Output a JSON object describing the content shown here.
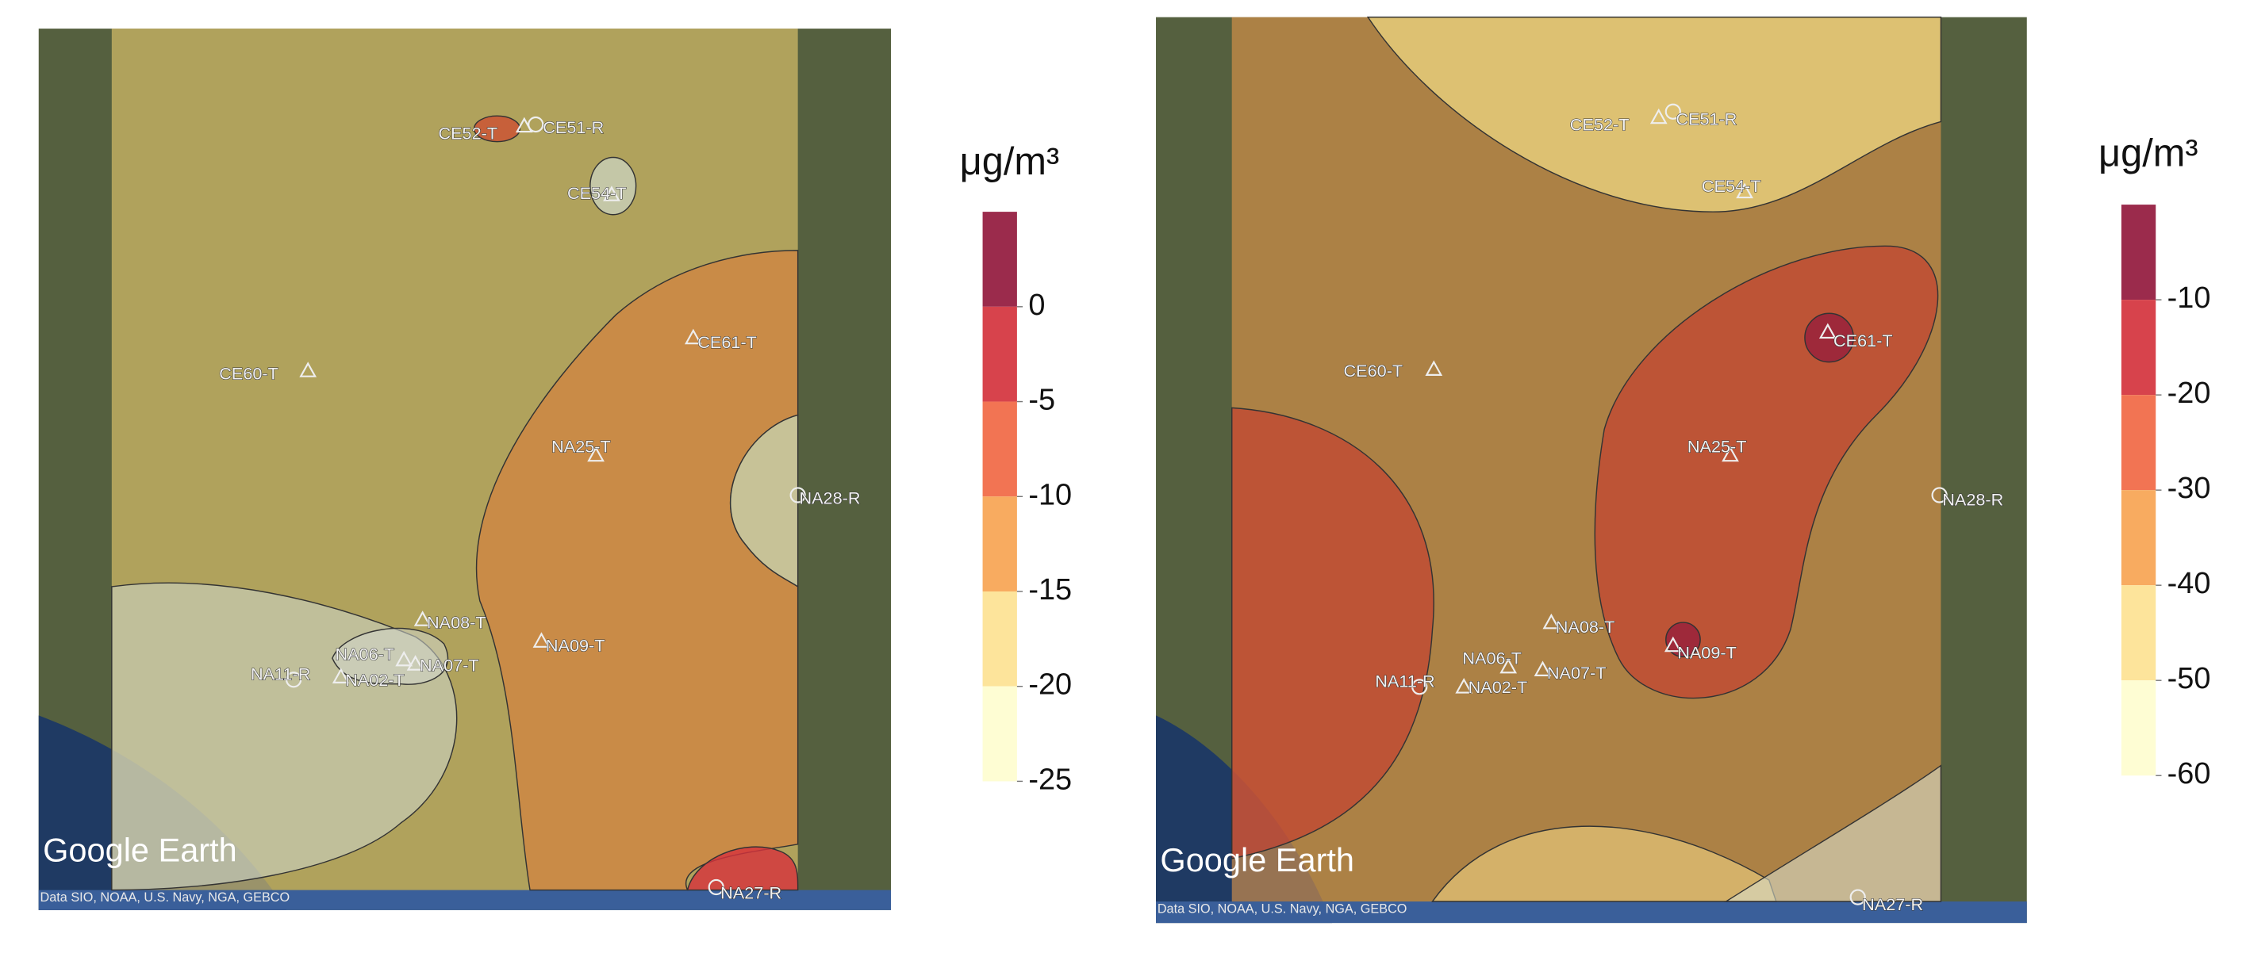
{
  "panels": [
    {
      "stations": [
        "CE52-T",
        "CE51-R",
        "CE54-T",
        "CE61-T",
        "CE60-T",
        "NA25-T",
        "NA28-R",
        "NA08-T",
        "NA09-T",
        "NA06-T",
        "NA07-T",
        "NA11-R",
        "NA02-T",
        "NA27-R"
      ],
      "logo": "Google Earth",
      "attribution": "Data SIO, NOAA, U.S. Navy, NGA, GEBCO",
      "colorbar": {
        "unit": "μg/m³",
        "range": [
          -25,
          5
        ],
        "ticks": [
          0,
          -5,
          -10,
          -15,
          -20,
          -25
        ],
        "colors": [
          "#9b2b4c",
          "#d7434c",
          "#f27453",
          "#f8ab60",
          "#fde49b",
          "#fefdd3"
        ]
      }
    },
    {
      "stations": [
        "CE52-T",
        "CE51-R",
        "CE54-T",
        "CE61-T",
        "CE60-T",
        "NA25-T",
        "NA28-R",
        "NA08-T",
        "NA09-T",
        "NA06-T",
        "NA07-T",
        "NA11-R",
        "NA02-T",
        "NA27-R"
      ],
      "logo": "Google Earth",
      "attribution": "Data SIO, NOAA, U.S. Navy, NGA, GEBCO",
      "colorbar": {
        "unit": "μg/m³",
        "range": [
          -60,
          0
        ],
        "ticks": [
          -10,
          -20,
          -30,
          -40,
          -50,
          -60
        ],
        "colors": [
          "#9b2b4c",
          "#d7434c",
          "#f27453",
          "#f8ab60",
          "#fde49b",
          "#fefdd3"
        ]
      }
    }
  ]
}
